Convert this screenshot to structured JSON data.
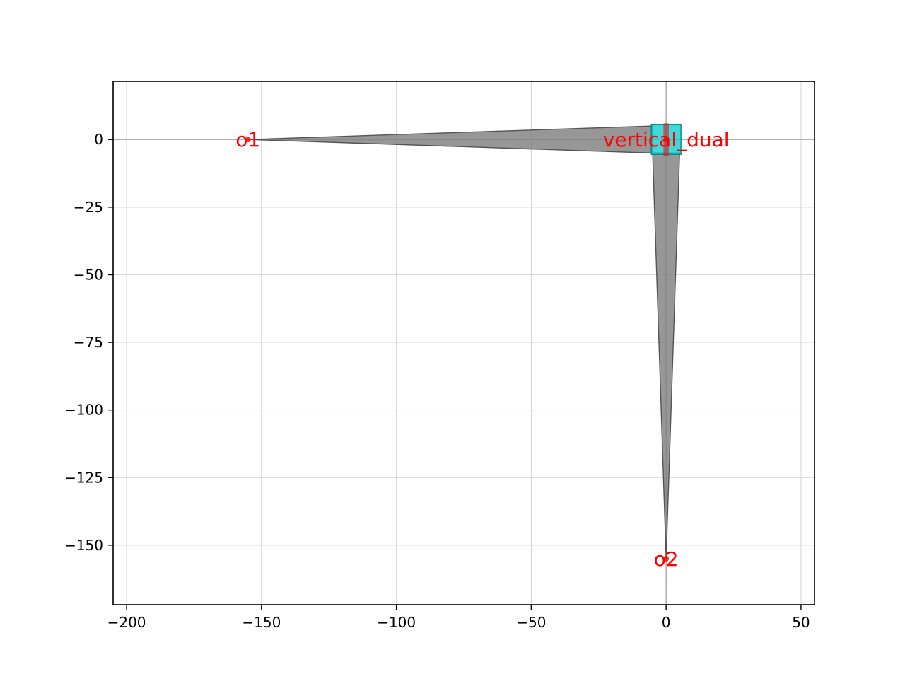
{
  "chart_data": {
    "type": "scatter",
    "title": "",
    "xlabel": "",
    "ylabel": "",
    "xlim": [
      -205,
      55
    ],
    "ylim": [
      -172,
      21.5
    ],
    "xticks": [
      -200,
      -150,
      -100,
      -50,
      0,
      50
    ],
    "yticks": [
      0,
      -25,
      -50,
      -75,
      -100,
      -125,
      -150
    ],
    "xtick_labels": [
      "−200",
      "−150",
      "−100",
      "−50",
      "0",
      "50"
    ],
    "ytick_labels": [
      "0",
      "−25",
      "−50",
      "−75",
      "−100",
      "−125",
      "−150"
    ],
    "grid": true,
    "colors": {
      "waveguide_fill": "#808080",
      "waveguide_edge": "#555555",
      "port_box_fill": "#00cccc",
      "port_box_edge": "#008b8b",
      "label": "#ff0000",
      "grid": "#d3d3d3",
      "zero_line": "#a9a9a9"
    },
    "polygons": [
      {
        "points": [
          [
            -155,
            0
          ],
          [
            -5,
            5
          ],
          [
            -5,
            -5
          ]
        ]
      },
      {
        "points": [
          [
            -5,
            -5
          ],
          [
            5,
            -5
          ],
          [
            0,
            -155
          ]
        ]
      }
    ],
    "port_box": {
      "x0": -5.5,
      "x1": 5.5,
      "y0": -5.5,
      "y1": 5.5
    },
    "port_marker": {
      "x0": -1,
      "x1": 1,
      "y0": -6,
      "y1": 6
    },
    "points": [
      {
        "label": "o1",
        "x": -155,
        "y": 0
      },
      {
        "label": "o2",
        "x": 0,
        "y": -155
      },
      {
        "label": "vertical_dual",
        "x": 0,
        "y": 0
      }
    ]
  }
}
